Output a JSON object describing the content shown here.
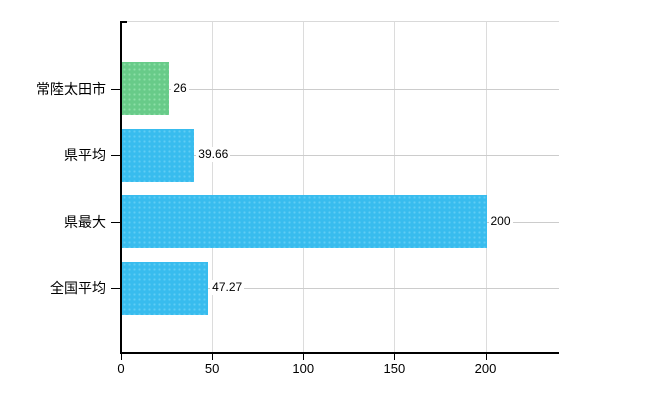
{
  "chart_data": {
    "type": "bar",
    "orientation": "horizontal",
    "title": "",
    "rows": [
      {
        "category": "常陸太田市",
        "value": 26,
        "value_label": "26",
        "color": "#68cb89",
        "dot_color": "#8ddfa6"
      },
      {
        "category": "県平均",
        "value": 39.66,
        "value_label": "39.66",
        "color": "#38bcee",
        "dot_color": "#5fcdf4"
      },
      {
        "category": "県最大",
        "value": 200,
        "value_label": "200",
        "color": "#38bcee",
        "dot_color": "#5fcdf4"
      },
      {
        "category": "全国平均",
        "value": 47.27,
        "value_label": "47.27",
        "color": "#38bcee",
        "dot_color": "#5fcdf4"
      }
    ],
    "x_axis": {
      "min": 0,
      "max": 240,
      "ticks": [
        0,
        50,
        100,
        150,
        200
      ],
      "tick_labels": [
        "0",
        "50",
        "100",
        "150",
        "200"
      ]
    },
    "grid": {
      "vertical_gridlines": true,
      "row_lines": true
    },
    "legend": {
      "visible": false
    }
  },
  "colors": {
    "background": "#ffffff",
    "axis": "#000000",
    "gridline": "#dcdcdc",
    "row_line": "#cccccc",
    "text": "#000000"
  }
}
